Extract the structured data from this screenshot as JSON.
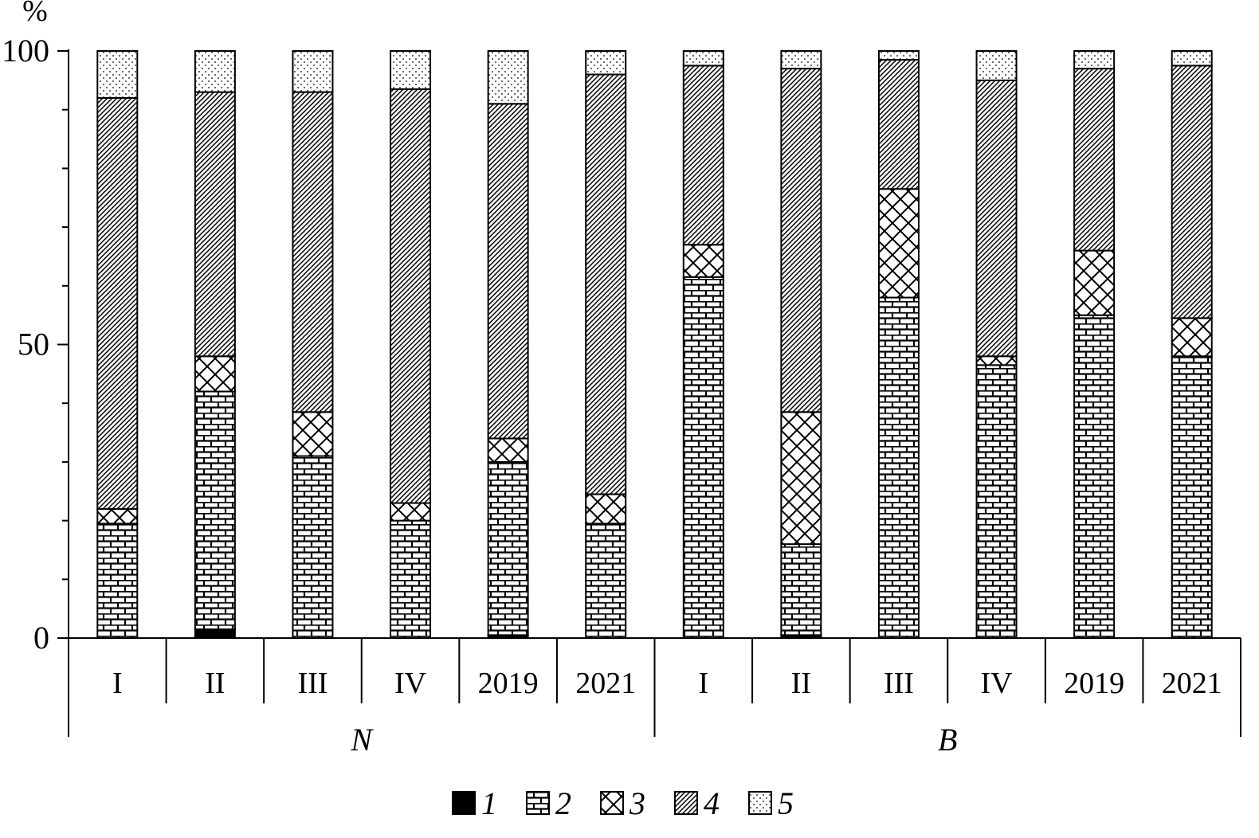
{
  "chart_data": {
    "type": "bar",
    "stacked": true,
    "title": "",
    "ylabel": "%",
    "xlabel": "",
    "ylim": [
      0,
      100
    ],
    "yticks": [
      0,
      50,
      100
    ],
    "grid": false,
    "legend_position": "bottom-center",
    "groups": [
      {
        "name": "N",
        "categories": [
          "I",
          "II",
          "III",
          "IV",
          "2019",
          "2021"
        ]
      },
      {
        "name": "B",
        "categories": [
          "I",
          "II",
          "III",
          "IV",
          "2019",
          "2021"
        ]
      }
    ],
    "categories": [
      "I",
      "II",
      "III",
      "IV",
      "2019",
      "2021",
      "I",
      "II",
      "III",
      "IV",
      "2019",
      "2021"
    ],
    "series": [
      {
        "name": "1",
        "pattern": "solid-black",
        "values": [
          0,
          1.5,
          0,
          0,
          0.5,
          0,
          0,
          0.5,
          0,
          0,
          0,
          0
        ]
      },
      {
        "name": "2",
        "pattern": "brick",
        "values": [
          19.5,
          40.5,
          31,
          20,
          29.5,
          19.5,
          61.5,
          15.5,
          58,
          46.5,
          55,
          48
        ]
      },
      {
        "name": "3",
        "pattern": "diamond-hatch",
        "values": [
          2.5,
          6,
          7.5,
          3,
          4,
          5,
          5.5,
          22.5,
          18.5,
          1.5,
          11,
          6.5
        ]
      },
      {
        "name": "4",
        "pattern": "diagonal-hatch",
        "values": [
          70,
          45,
          54.5,
          70.5,
          57,
          71.5,
          30.5,
          58.5,
          22,
          47,
          31,
          43
        ]
      },
      {
        "name": "5",
        "pattern": "dots",
        "values": [
          8,
          7,
          7,
          6.5,
          9,
          4,
          2.5,
          3,
          1.5,
          5,
          3,
          2.5
        ]
      }
    ]
  }
}
